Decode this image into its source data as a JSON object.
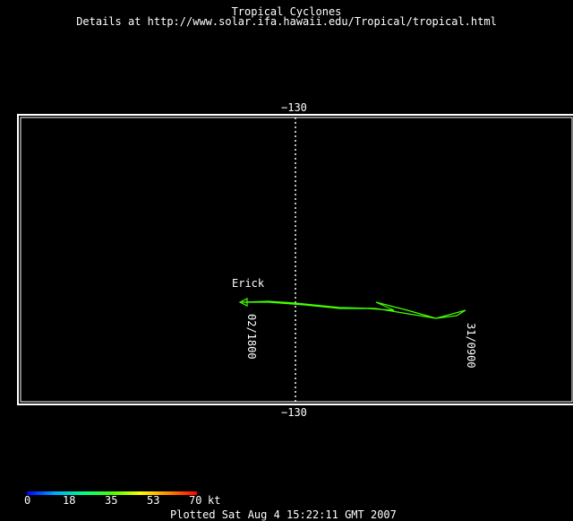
{
  "header": {
    "title": "Tropical Cyclones",
    "subtitle": "Details at http://www.solar.ifa.hawaii.edu/Tropical/tropical.html"
  },
  "map": {
    "longitude_label_top": "−130",
    "longitude_label_bottom": "−130",
    "frame_color": "#ffffff",
    "track_color": "#44ff00"
  },
  "storm": {
    "name": "Erick",
    "start_label": "02/1800",
    "end_label": "31/0900"
  },
  "legend": {
    "ticks": [
      "0",
      "18",
      "35",
      "53",
      "70"
    ],
    "unit": "kt",
    "colors": [
      "#0000ff",
      "#00aaff",
      "#00ff88",
      "#44ff00",
      "#ffff00",
      "#ff8800",
      "#ff0000"
    ]
  },
  "footer": {
    "plotted": "Plotted Sat Aug 4 15:22:11 GMT 2007"
  }
}
